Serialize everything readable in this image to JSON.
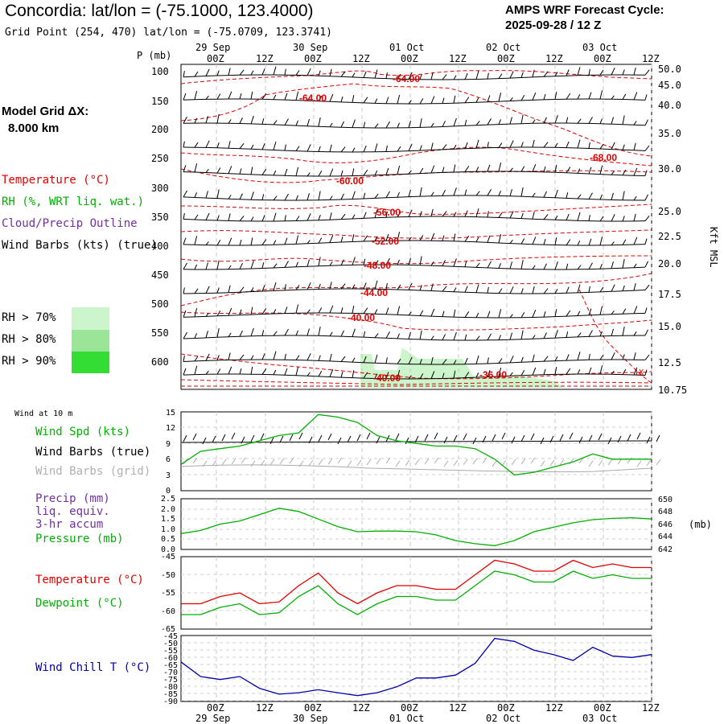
{
  "header": {
    "title": "Concordia:  lat/lon = (-75.1000, 123.4000)",
    "subtitle": "Grid Point (254, 470) lat/lon = (-75.0709, 123.3741)",
    "cycle_line1": "AMPS WRF Forecast Cycle:",
    "cycle_line2": "2025-09-28 / 12  Z"
  },
  "model": {
    "line1": "Model Grid ΔX:",
    "line2": "8.000 km"
  },
  "legend": {
    "temperature": "Temperature (°C)",
    "rh": "RH (%, WRT liq. wat.)",
    "cloud": "Cloud/Precip Outline",
    "barbs": "Wind Barbs (kts) (true)",
    "rh70": "RH > 70%",
    "rh80": "RH > 80%",
    "rh90": "RH > 90%",
    "colors": {
      "temperature": "#e00000",
      "rh": "#00b000",
      "cloud": "#7030a0",
      "rh70": "#ccf5cc",
      "rh80": "#99e699",
      "rh90": "#33dd33"
    }
  },
  "time_axis": {
    "ticks": [
      "00Z",
      "12Z",
      "00Z",
      "12Z",
      "00Z",
      "12Z",
      "00Z",
      "12Z",
      "00Z",
      "12Z"
    ],
    "dates": [
      "29 Sep",
      "30 Sep",
      "01 Oct",
      "02 Oct",
      "03 Oct"
    ]
  },
  "x_series": [
    0,
    6,
    12,
    18,
    24,
    30,
    36,
    42,
    48,
    54,
    60,
    66,
    72,
    78,
    84,
    90,
    96,
    102,
    108,
    114,
    120,
    126,
    132,
    138,
    144
  ],
  "xsection": {
    "p_label": "P (mb)",
    "p_ticks": [
      "100",
      "150",
      "200",
      "250",
      "300",
      "350",
      "400",
      "450",
      "500",
      "550",
      "600"
    ],
    "kft_ticks": [
      "50.0",
      "45.0",
      "40.0",
      "35.0",
      "30.0",
      "25.0",
      "22.5",
      "20.0",
      "17.5",
      "15.0",
      "12.5",
      "10.75"
    ],
    "kft_label": "Kft MSL",
    "temp_labels": [
      "-64.00",
      "-64.00",
      "-68.00",
      "-60.00",
      "-56.00",
      "-52.00",
      "-48.00",
      "-44.00",
      "-40.00",
      "-40.00",
      "-36.00"
    ],
    "corner_mark": "1X"
  },
  "wind_panel": {
    "label_top": "Wind at 10 m",
    "spd_label": "Wind Spd (kts)",
    "barbs_true_label": "Wind Barbs (true)",
    "barbs_grid_label": "Wind Barbs (grid)",
    "y_ticks": [
      "15",
      "12",
      "9",
      "6",
      "3",
      "0"
    ]
  },
  "precip_panel": {
    "label1": "Precip (mm)",
    "label2": "liq. equiv.",
    "label3": "3-hr accum",
    "pressure_label": "Pressure (mb)",
    "left_ticks": [
      "2.5",
      "2.0",
      "1.5",
      "1.0",
      "0.5",
      "0.0"
    ],
    "right_ticks": [
      "650",
      "648",
      "646",
      "644",
      "642"
    ],
    "right_unit": "(mb)"
  },
  "temp_panel": {
    "temp_label": "Temperature (°C)",
    "dew_label": "Dewpoint (°C)",
    "y_ticks": [
      "-45",
      "-50",
      "-55",
      "-60",
      "-65"
    ]
  },
  "chill_panel": {
    "label": "Wind Chill T (°C)",
    "y_ticks": [
      "-45",
      "-50",
      "-55",
      "-60",
      "-65",
      "-70",
      "-75",
      "-80",
      "-85",
      "-90"
    ]
  },
  "chart_data": [
    {
      "type": "line",
      "title": "Wind at 10 m",
      "ylabel": "Wind Spd (kts)",
      "ylim": [
        0,
        15
      ],
      "series": [
        {
          "name": "Wind Spd (kts)",
          "color": "#00b000",
          "values": [
            5,
            7.5,
            8,
            8.5,
            9.5,
            10.5,
            11,
            14.5,
            14,
            13,
            10.5,
            9.5,
            9,
            8.5,
            8.5,
            8,
            6,
            3,
            3.5,
            4.5,
            5.5,
            7,
            6,
            6,
            6
          ]
        }
      ]
    },
    {
      "type": "line",
      "title": "Precip / Pressure",
      "ylim_left": [
        0,
        2.5
      ],
      "ylim_right": [
        642,
        650
      ],
      "series": [
        {
          "name": "Pressure (mb)",
          "color": "#00b000",
          "axis": "right",
          "values": [
            644.5,
            645,
            646,
            646.5,
            647.5,
            648.5,
            648,
            646.8,
            645.6,
            644.8,
            644.9,
            644.9,
            644.8,
            644.3,
            643.4,
            642.9,
            642.6,
            643.4,
            644.8,
            645.5,
            646.2,
            646.7,
            646.9,
            647,
            646.8
          ]
        }
      ]
    },
    {
      "type": "line",
      "title": "Temperature / Dewpoint",
      "ylabel": "°C",
      "ylim": [
        -65,
        -45
      ],
      "series": [
        {
          "name": "Temperature (°C)",
          "color": "#e00000",
          "values": [
            -58,
            -58,
            -56,
            -55,
            -58,
            -57.5,
            -53,
            -49.5,
            -55,
            -58,
            -55,
            -53,
            -53,
            -54,
            -54,
            -50,
            -46,
            -47,
            -49,
            -49,
            -46,
            -48,
            -47,
            -48,
            -48
          ]
        },
        {
          "name": "Dewpoint (°C)",
          "color": "#00b000",
          "values": [
            -61,
            -61,
            -59,
            -58,
            -61,
            -60.5,
            -56,
            -53,
            -58,
            -61,
            -58,
            -56,
            -56,
            -57,
            -57,
            -53,
            -49,
            -50,
            -52,
            -52,
            -49,
            -51,
            -50,
            -51,
            -51
          ]
        }
      ]
    },
    {
      "type": "line",
      "title": "Wind Chill T",
      "ylabel": "Wind Chill T (°C)",
      "ylim": [
        -90,
        -45
      ],
      "series": [
        {
          "name": "Wind Chill T (°C)",
          "color": "#0000aa",
          "values": [
            -63,
            -73,
            -75,
            -73,
            -81,
            -85,
            -84,
            -82,
            -84,
            -86,
            -84,
            -80,
            -74,
            -74,
            -72,
            -64,
            -47,
            -49,
            -55,
            -58,
            -62,
            -53,
            -59,
            -60,
            -58
          ]
        }
      ]
    }
  ]
}
